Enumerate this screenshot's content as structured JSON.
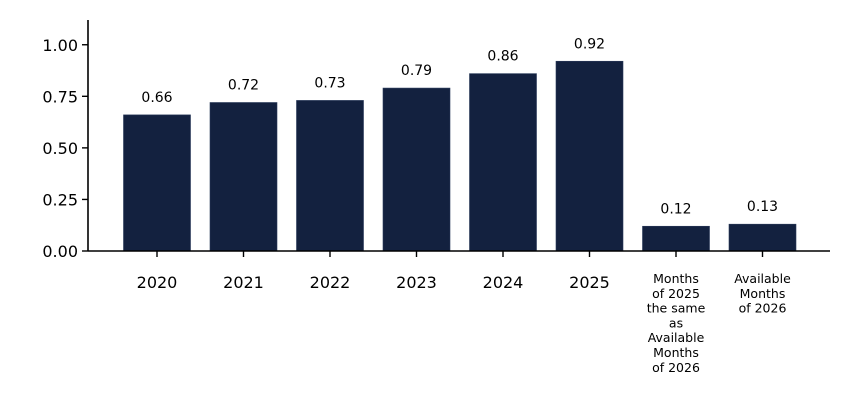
{
  "chart_data": {
    "type": "bar",
    "title": "",
    "xlabel": "",
    "ylabel": "",
    "categories": [
      "2020",
      "2021",
      "2022",
      "2023",
      "2024",
      "2025",
      "Months\nof 2025\nthe same\nas\nAvailable\nMonths\nof 2026",
      "Available\nMonths\nof 2026"
    ],
    "values": [
      0.66,
      0.72,
      0.73,
      0.79,
      0.86,
      0.92,
      0.12,
      0.13
    ],
    "value_labels": [
      "0.66",
      "0.72",
      "0.73",
      "0.79",
      "0.86",
      "0.92",
      "0.12",
      "0.13"
    ],
    "ylim": [
      0,
      1.12
    ],
    "yticks": [
      0.0,
      0.25,
      0.5,
      0.75,
      1.0
    ],
    "ytick_labels": [
      "0.00",
      "0.25",
      "0.50",
      "0.75",
      "1.00"
    ],
    "bar_color": "#13213f",
    "grid": false,
    "legend": "none"
  }
}
